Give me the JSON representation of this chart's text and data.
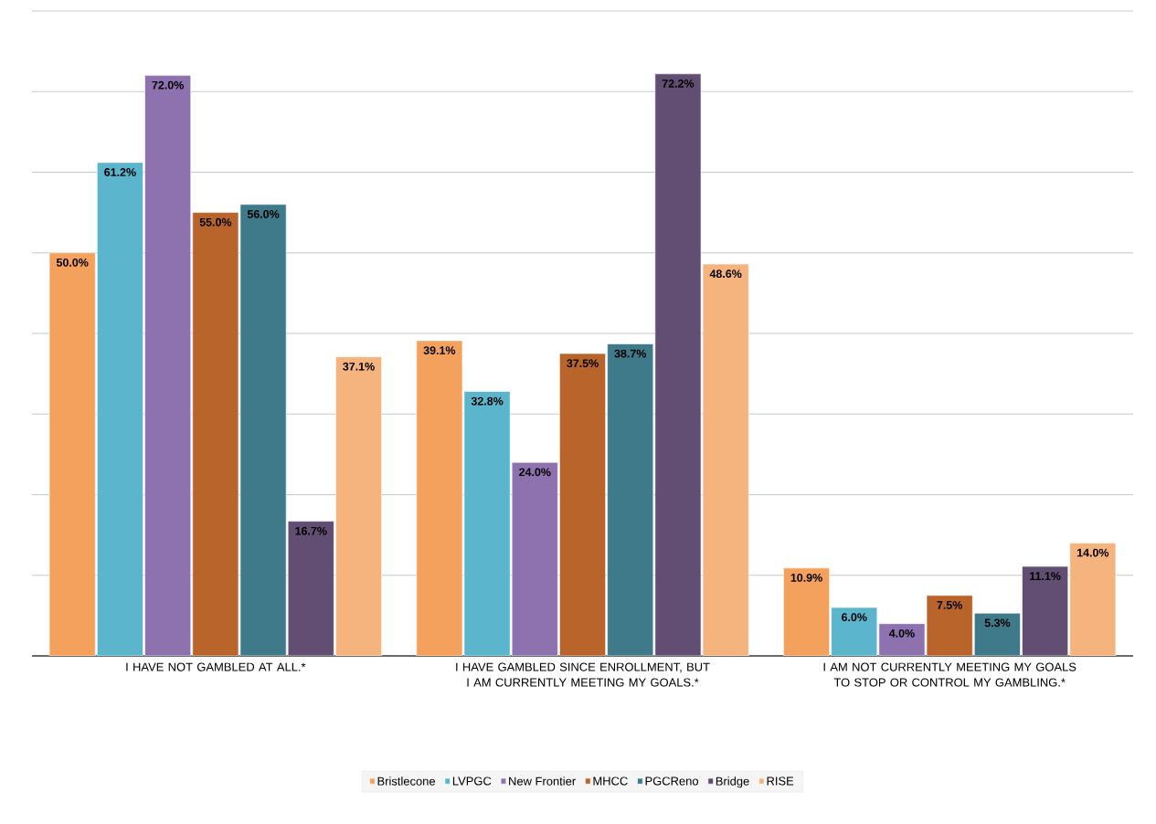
{
  "chart_data": {
    "type": "bar",
    "categories": [
      "I HAVE NOT GAMBLED AT ALL.*",
      "I HAVE GAMBLED SINCE ENROLLMENT, BUT I AM CURRENTLY MEETING MY GOALS.*",
      "I AM NOT CURRENTLY MEETING MY GOALS TO STOP OR CONTROL MY GAMBLING.*"
    ],
    "series": [
      {
        "name": "Bristlecone",
        "color": "#f4a15d",
        "values": [
          50.0,
          39.1,
          10.9
        ],
        "value_labels": [
          "50.0%",
          "39.1%",
          "10.9%"
        ]
      },
      {
        "name": "LVPGC",
        "color": "#5bb5cc",
        "values": [
          61.2,
          32.8,
          6.0
        ],
        "value_labels": [
          "61.2%",
          "32.8%",
          "6.0%"
        ]
      },
      {
        "name": "New Frontier",
        "color": "#8e72b0",
        "values": [
          72.0,
          24.0,
          4.0
        ],
        "value_labels": [
          "72.0%",
          "24.0%",
          "4.0%"
        ]
      },
      {
        "name": "MHCC",
        "color": "#b8642a",
        "values": [
          55.0,
          37.5,
          7.5
        ],
        "value_labels": [
          "55.0%",
          "37.5%",
          "7.5%"
        ]
      },
      {
        "name": "PGCReno",
        "color": "#3e7a8a",
        "values": [
          56.0,
          38.7,
          5.3
        ],
        "value_labels": [
          "56.0%",
          "38.7%",
          "5.3%"
        ]
      },
      {
        "name": "Bridge",
        "color": "#614e72",
        "values": [
          16.7,
          72.2,
          11.1
        ],
        "value_labels": [
          "16.7%",
          "72.2%",
          "11.1%"
        ]
      },
      {
        "name": "RISE",
        "color": "#f5b47e",
        "values": [
          37.1,
          48.6,
          14.0
        ],
        "value_labels": [
          "37.1%",
          "48.6%",
          "14.0%"
        ]
      }
    ],
    "ylim": [
      0,
      80
    ],
    "yticks": [
      {
        "value": 0,
        "label": null
      },
      {
        "value": 10,
        "label": null
      },
      {
        "value": 20,
        "label": null
      },
      {
        "value": 30,
        "label": null
      },
      {
        "value": 40,
        "label": null
      },
      {
        "value": 50,
        "label": null
      },
      {
        "value": 60,
        "label": null
      },
      {
        "value": 70,
        "label": null
      },
      {
        "value": 80,
        "label": null
      }
    ],
    "tick_labels": "x",
    "grid": "y",
    "legend": "bottom"
  }
}
